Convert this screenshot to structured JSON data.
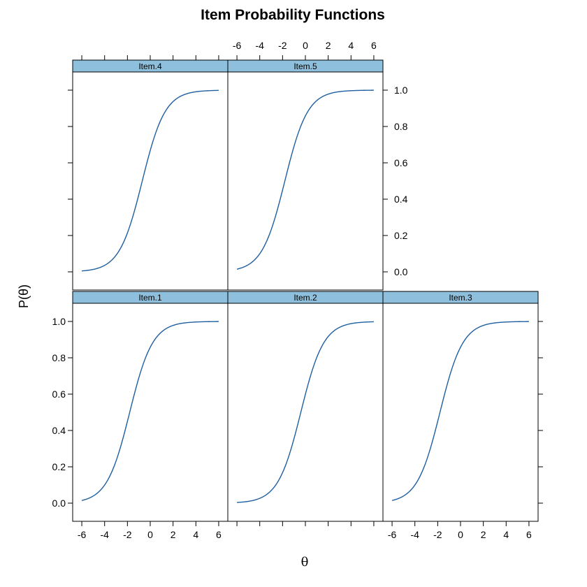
{
  "chart_data": {
    "type": "line",
    "title": "Item Probability Functions",
    "xlabel": "θ",
    "ylabel": "P(θ)",
    "xlim": [
      -6.8,
      6.8
    ],
    "ylim": [
      -0.1,
      1.1
    ],
    "x_ticks": [
      -6,
      -4,
      -2,
      0,
      2,
      4,
      6
    ],
    "y_ticks": [
      0.0,
      0.2,
      0.4,
      0.6,
      0.8,
      1.0
    ],
    "x_tick_labels": [
      "-6",
      "-4",
      "-2",
      "0",
      "2",
      "4",
      "6"
    ],
    "y_tick_labels": [
      "0.0",
      "0.2",
      "0.4",
      "0.6",
      "0.8",
      "1.0"
    ],
    "grid": false,
    "line_color": "#1f5fa0",
    "strip_color": "#8ec0de",
    "panels": [
      {
        "name": "Item.1",
        "function": "logistic",
        "a": 1.0,
        "b": -1.8,
        "x_range": [
          -6,
          6
        ]
      },
      {
        "name": "Item.2",
        "function": "logistic",
        "a": 1.0,
        "b": -0.4,
        "x_range": [
          -6,
          6
        ]
      },
      {
        "name": "Item.3",
        "function": "logistic",
        "a": 1.0,
        "b": -1.8,
        "x_range": [
          -6,
          6
        ]
      },
      {
        "name": "Item.4",
        "function": "logistic",
        "a": 1.0,
        "b": -0.7,
        "x_range": [
          -6,
          6
        ]
      },
      {
        "name": "Item.5",
        "function": "logistic",
        "a": 1.0,
        "b": -1.8,
        "x_range": [
          -6,
          6
        ]
      }
    ]
  }
}
